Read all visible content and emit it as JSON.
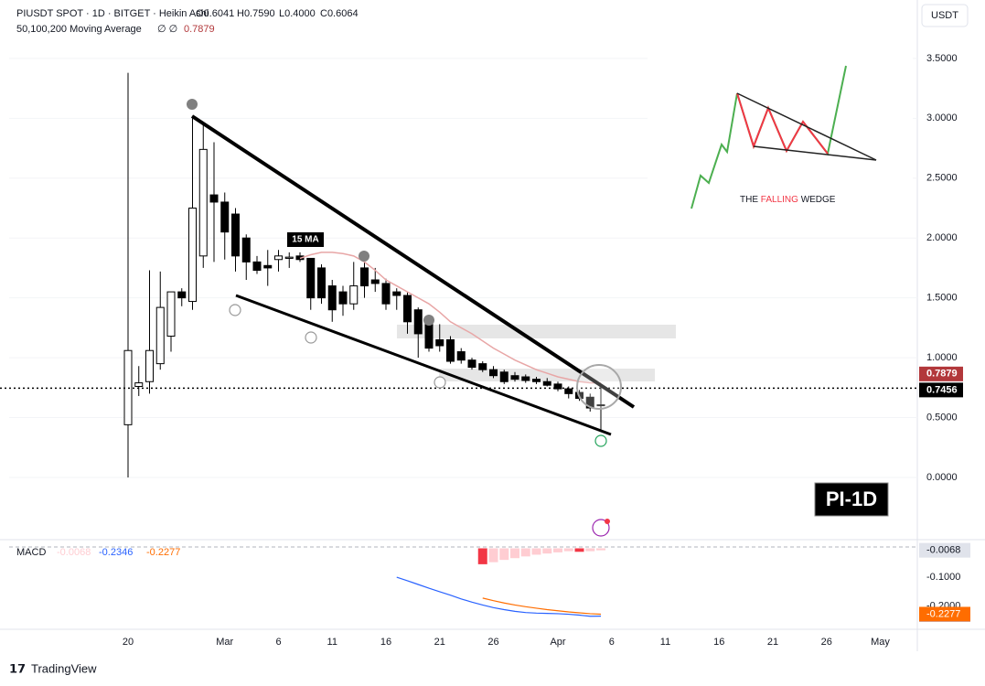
{
  "chart_data": [
    {
      "type": "candlestick",
      "title": "PIUSDT SPOT · 1D · BITGET · Heikin Ashi",
      "ohlc_labels": [
        "O0.6041",
        "H0.7590",
        "L0.4000",
        "C0.6064"
      ],
      "indicator_label": "50,100,200 Moving Average",
      "indicator_flags": "∅ ∅",
      "currency": "USDT",
      "watermark": "PI-1D",
      "inset_title": [
        "THE ",
        "FALLING",
        " WEDGE"
      ],
      "categories": [
        "20",
        null,
        null,
        null,
        null,
        null,
        null,
        null,
        null,
        "Mar",
        null,
        null,
        null,
        null,
        "6",
        null,
        null,
        null,
        null,
        "11",
        null,
        null,
        null,
        null,
        "16",
        null,
        null,
        null,
        null,
        "21",
        null,
        null,
        null,
        null,
        "26",
        null,
        null,
        null,
        null,
        null,
        "Apr",
        null,
        null,
        null,
        null,
        "6",
        null,
        null,
        null,
        null,
        "11",
        null,
        null,
        null,
        null,
        "16",
        null,
        null,
        null,
        null,
        "21",
        null,
        null,
        null,
        null,
        "26",
        null,
        null,
        null,
        null,
        "May"
      ],
      "open": [
        0.44,
        0.76,
        0.8,
        0.95,
        1.18,
        1.55,
        1.47,
        1.85,
        2.36,
        2.3,
        2.2,
        2.0,
        1.8,
        1.77,
        1.82,
        1.83,
        1.85,
        1.83,
        1.75,
        1.6,
        1.55,
        1.45,
        1.75,
        1.65,
        1.62,
        1.55,
        1.52,
        1.4,
        1.3,
        1.15,
        1.15,
        1.05,
        0.98,
        0.95,
        0.9,
        0.88,
        0.85,
        0.84,
        0.82,
        0.8,
        0.78,
        0.74,
        0.71,
        0.67,
        0.6041,
        null,
        null,
        null,
        null,
        null,
        null,
        null,
        null,
        null,
        null,
        null,
        null,
        null,
        null,
        null,
        null,
        null,
        null,
        null,
        null,
        null,
        null,
        null,
        null,
        null,
        null
      ],
      "high": [
        3.38,
        0.93,
        1.73,
        1.72,
        1.55,
        1.58,
        3.0,
        2.97,
        2.8,
        2.38,
        2.25,
        2.03,
        1.85,
        1.9,
        1.9,
        1.88,
        1.88,
        1.83,
        1.78,
        1.65,
        1.6,
        1.8,
        1.8,
        1.75,
        1.66,
        1.58,
        1.55,
        1.42,
        1.32,
        1.28,
        1.18,
        1.08,
        1.0,
        0.97,
        0.93,
        0.9,
        0.88,
        0.86,
        0.84,
        0.83,
        0.8,
        0.76,
        0.73,
        0.7,
        0.759,
        null,
        null,
        null,
        null,
        null,
        null,
        null,
        null,
        null,
        null,
        null,
        null,
        null,
        null,
        null,
        null,
        null,
        null,
        null,
        null,
        null,
        null,
        null,
        null,
        null,
        null
      ],
      "low": [
        0.0,
        0.68,
        0.7,
        0.9,
        1.05,
        1.43,
        1.4,
        1.75,
        1.8,
        1.82,
        1.72,
        1.65,
        1.7,
        1.6,
        1.72,
        1.75,
        1.8,
        1.4,
        1.45,
        1.3,
        1.35,
        1.4,
        1.5,
        1.55,
        1.4,
        1.4,
        1.2,
        1.0,
        1.05,
        1.05,
        0.95,
        0.95,
        0.9,
        0.88,
        0.83,
        0.78,
        0.8,
        0.79,
        0.78,
        0.76,
        0.72,
        0.66,
        0.64,
        0.55,
        0.4,
        null,
        null,
        null,
        null,
        null,
        null,
        null,
        null,
        null,
        null,
        null,
        null,
        null,
        null,
        null,
        null,
        null,
        null,
        null,
        null,
        null,
        null,
        null,
        null,
        null,
        null
      ],
      "close": [
        1.06,
        0.79,
        1.06,
        1.42,
        1.55,
        1.5,
        2.25,
        2.74,
        2.3,
        2.05,
        1.85,
        1.8,
        1.73,
        1.75,
        1.85,
        1.84,
        1.82,
        1.5,
        1.5,
        1.4,
        1.45,
        1.6,
        1.6,
        1.62,
        1.45,
        1.52,
        1.3,
        1.2,
        1.08,
        1.1,
        0.97,
        0.98,
        0.92,
        0.9,
        0.85,
        0.8,
        0.82,
        0.81,
        0.8,
        0.77,
        0.74,
        0.7,
        0.66,
        0.58,
        0.6064,
        null,
        null,
        null,
        null,
        null,
        null,
        null,
        null,
        null,
        null,
        null,
        null,
        null,
        null,
        null,
        null,
        null,
        null,
        null,
        null,
        null,
        null,
        null,
        null,
        null,
        null
      ],
      "up_color": "#ffffff",
      "down_color": "#000000",
      "ma": {
        "name": "15 MA",
        "color": "#e8a6a6",
        "values": [
          null,
          null,
          null,
          null,
          null,
          null,
          null,
          null,
          null,
          null,
          null,
          null,
          null,
          null,
          null,
          null,
          1.83,
          1.86,
          1.88,
          1.88,
          1.87,
          1.85,
          1.8,
          1.73,
          1.65,
          1.6,
          1.55,
          1.5,
          1.45,
          1.38,
          1.3,
          1.25,
          1.2,
          1.14,
          1.08,
          1.03,
          0.98,
          0.94,
          0.9,
          0.87,
          0.84,
          0.82,
          0.8,
          0.79,
          0.7879,
          null,
          null,
          null,
          null,
          null,
          null,
          null,
          null,
          null,
          null,
          null,
          null,
          null,
          null,
          null,
          null,
          null,
          null,
          null,
          null,
          null,
          null,
          null,
          null,
          null,
          null
        ]
      },
      "last_price": 0.7456,
      "ylim": [
        -0.52,
        3.95
      ],
      "yticks": [
        {
          "value": 0,
          "label": "0.0000"
        },
        {
          "value": 0.5,
          "label": "0.5000"
        },
        {
          "value": 1,
          "label": "1.0000"
        },
        {
          "value": 1.5,
          "label": "1.5000"
        },
        {
          "value": 2,
          "label": "2.0000"
        },
        {
          "value": 2.5,
          "label": "2.5000"
        },
        {
          "value": 3,
          "label": "3.0000"
        },
        {
          "value": 3.5,
          "label": "3.5000"
        }
      ],
      "grid": true
    },
    {
      "type": "macd",
      "title": "MACD",
      "series": [
        {
          "kind": "histogram",
          "color": "#ffcdd2",
          "alt_color": "#f23645",
          "values": [
            null,
            null,
            null,
            null,
            null,
            null,
            null,
            null,
            null,
            null,
            null,
            null,
            null,
            null,
            null,
            null,
            null,
            null,
            null,
            null,
            null,
            null,
            null,
            null,
            null,
            null,
            null,
            null,
            null,
            null,
            null,
            null,
            null,
            -0.055,
            -0.048,
            -0.04,
            -0.034,
            -0.028,
            -0.022,
            -0.018,
            -0.014,
            -0.01,
            -0.012,
            -0.01,
            -0.0068,
            null,
            null,
            null,
            null,
            null,
            null,
            null,
            null,
            null,
            null,
            null,
            null,
            null,
            null,
            null,
            null,
            null,
            null,
            null,
            null,
            null,
            null,
            null,
            null,
            null,
            null
          ]
        },
        {
          "kind": "line",
          "color": "#2962ff",
          "values": [
            null,
            null,
            null,
            null,
            null,
            null,
            null,
            null,
            null,
            null,
            null,
            null,
            null,
            null,
            null,
            null,
            null,
            null,
            null,
            null,
            null,
            null,
            null,
            null,
            null,
            -0.1,
            -0.112,
            -0.125,
            -0.138,
            -0.15,
            -0.162,
            -0.175,
            -0.186,
            -0.196,
            -0.205,
            -0.212,
            -0.218,
            -0.222,
            -0.224,
            -0.225,
            -0.226,
            -0.228,
            -0.231,
            -0.235,
            -0.2346,
            null,
            null,
            null,
            null,
            null,
            null,
            null,
            null,
            null,
            null,
            null,
            null,
            null,
            null,
            null,
            null,
            null,
            null,
            null,
            null,
            null,
            null,
            null,
            null,
            null,
            null
          ]
        },
        {
          "kind": "line",
          "color": "#ff6d00",
          "values": [
            null,
            null,
            null,
            null,
            null,
            null,
            null,
            null,
            null,
            null,
            null,
            null,
            null,
            null,
            null,
            null,
            null,
            null,
            null,
            null,
            null,
            null,
            null,
            null,
            null,
            null,
            null,
            null,
            null,
            null,
            null,
            null,
            null,
            -0.172,
            -0.181,
            -0.189,
            -0.196,
            -0.202,
            -0.207,
            -0.212,
            -0.216,
            -0.22,
            -0.223,
            -0.226,
            -0.2277,
            null,
            null,
            null,
            null,
            null,
            null,
            null,
            null,
            null,
            null,
            null,
            null,
            null,
            null,
            null,
            null,
            null,
            null,
            null,
            null,
            null,
            null,
            null,
            null,
            null,
            null
          ]
        }
      ],
      "ylim": [
        -0.28,
        0.03
      ],
      "yticks": [
        {
          "value": -0.1,
          "label": "-0.1000"
        },
        {
          "value": -0.2,
          "label": "-0.2000"
        }
      ],
      "brand": "TradingView"
    }
  ]
}
